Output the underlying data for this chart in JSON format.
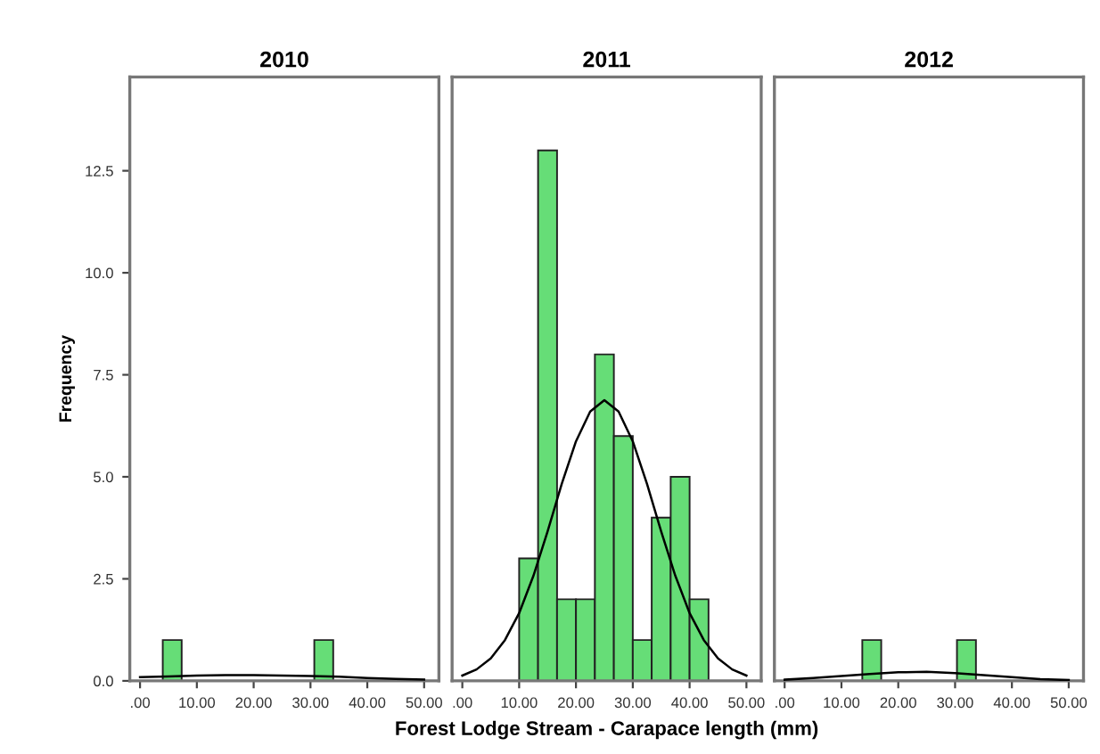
{
  "chart_data": [
    {
      "type": "histogram",
      "title": "2010",
      "ylabel": "Frequency",
      "xlim": [
        -1.8,
        52.6
      ],
      "ylim": [
        0,
        14.8
      ],
      "xticks": [
        {
          "value": 0,
          "label": ".00"
        },
        {
          "value": 10,
          "label": "10.00"
        },
        {
          "value": 20,
          "label": "20.00"
        },
        {
          "value": 30,
          "label": "30.00"
        },
        {
          "value": 40,
          "label": "40.00"
        },
        {
          "value": 50,
          "label": "50.00"
        }
      ],
      "yticks": [
        {
          "value": 0,
          "label": "0.0"
        },
        2.5,
        {
          "value": 5,
          "label": "5.0"
        },
        7.5,
        {
          "value": 10,
          "label": "10.0"
        },
        12.5
      ],
      "grid": false,
      "series": [
        {
          "color": "#66dd77",
          "bins": [
            4,
            7.33,
            10.67,
            14,
            17.33,
            20.67,
            24,
            27.33,
            30.67,
            34
          ],
          "values": [
            1,
            0,
            0,
            0,
            0,
            0,
            0,
            0,
            1
          ]
        },
        {
          "type": "line",
          "color": "#000000",
          "x": [
            0,
            5,
            10,
            15,
            20,
            25,
            30,
            35,
            40,
            45,
            50
          ],
          "values": [
            0.09,
            0.11,
            0.13,
            0.14,
            0.14,
            0.13,
            0.12,
            0.1,
            0.07,
            0.05,
            0.03
          ]
        }
      ]
    },
    {
      "type": "histogram",
      "title": "2011",
      "xlabel": "Forest Lodge Stream - Carapace length (mm)",
      "xlim": [
        -1.8,
        52.6
      ],
      "ylim": [
        0,
        14.8
      ],
      "xticks": [
        {
          "value": 0,
          "label": ".00"
        },
        {
          "value": 10,
          "label": "10.00"
        },
        {
          "value": 20,
          "label": "20.00"
        },
        {
          "value": 30,
          "label": "30.00"
        },
        {
          "value": 40,
          "label": "40.00"
        },
        {
          "value": 50,
          "label": "50.00"
        }
      ],
      "tick_labels": "x",
      "grid": false,
      "series": [
        {
          "color": "#66dd77",
          "bins": [
            10,
            13.33,
            16.67,
            20,
            23.33,
            26.67,
            30,
            33.33,
            36.67,
            40,
            43.33
          ],
          "values": [
            3,
            13,
            2,
            2,
            8,
            6,
            1,
            4,
            5,
            2
          ]
        },
        {
          "type": "line",
          "color": "#000000",
          "x": [
            0,
            2.5,
            5,
            7.5,
            10,
            12.5,
            15,
            17.5,
            20,
            22.5,
            25,
            27.5,
            30,
            32.5,
            35,
            37.5,
            40,
            42.5,
            45,
            47.5,
            50
          ],
          "values": [
            0.13,
            0.28,
            0.55,
            1.0,
            1.66,
            2.57,
            3.66,
            4.83,
            5.87,
            6.6,
            6.88,
            6.6,
            5.87,
            4.83,
            3.66,
            2.57,
            1.66,
            1.0,
            0.55,
            0.28,
            0.13
          ]
        }
      ]
    },
    {
      "type": "histogram",
      "title": "2012",
      "xlim": [
        -1.8,
        52.6
      ],
      "ylim": [
        0,
        14.8
      ],
      "xticks": [
        {
          "value": 0,
          "label": ".00"
        },
        {
          "value": 10,
          "label": "10.00"
        },
        {
          "value": 20,
          "label": "20.00"
        },
        {
          "value": 30,
          "label": "30.00"
        },
        {
          "value": 40,
          "label": "40.00"
        },
        {
          "value": 50,
          "label": "50.00"
        }
      ],
      "tick_labels": "x",
      "grid": false,
      "series": [
        {
          "color": "#66dd77",
          "bins": [
            13.67,
            17,
            20.33,
            23.67,
            27,
            30.33,
            33.67
          ],
          "values": [
            1,
            0,
            0,
            0,
            0,
            1
          ]
        },
        {
          "type": "line",
          "color": "#000000",
          "x": [
            0,
            5,
            10,
            15,
            20,
            25,
            30,
            35,
            40,
            45,
            50
          ],
          "values": [
            0.03,
            0.07,
            0.12,
            0.17,
            0.21,
            0.22,
            0.19,
            0.14,
            0.09,
            0.04,
            0.02
          ]
        }
      ]
    }
  ]
}
